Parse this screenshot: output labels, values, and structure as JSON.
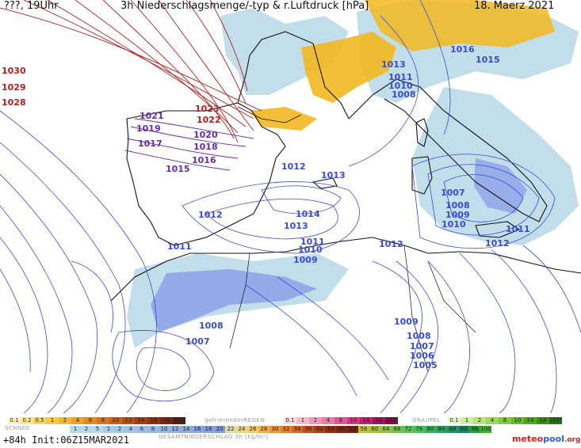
{
  "header": {
    "left": "???, 19Uhr",
    "title": "3h Niederschlagsmenge/-typ & r.Luftdruck [hPa]",
    "date": "18. Maerz 2021"
  },
  "isobar_labels": {
    "red": [
      "1030",
      "1029",
      "1028",
      "1023",
      "1022"
    ],
    "purple": [
      "1021",
      "1019",
      "1017",
      "1020",
      "1018",
      "1016",
      "1015"
    ],
    "blue": [
      "1016",
      "1015",
      "1013",
      "1011",
      "1010",
      "1008",
      "1012",
      "1013",
      "1014",
      "1013",
      "1012",
      "1011",
      "1011",
      "1010",
      "1009",
      "1012",
      "1007",
      "1008",
      "1009",
      "1010",
      "1012",
      "1011",
      "1008",
      "1007",
      "1009",
      "1008",
      "1007",
      "1006",
      "1005"
    ]
  },
  "legend": {
    "rain_label": "",
    "rain_values": [
      "0.1",
      "0.2",
      "0.5",
      "1",
      "2",
      "4",
      "6",
      "8",
      "10",
      "12",
      "14",
      "16",
      "18",
      "2025+"
    ],
    "freezing_label": "gefrierenderREGEN",
    "freezing_values": [
      "0.1",
      "1",
      "2",
      "4",
      "8",
      "10",
      "14",
      "16",
      "2025+"
    ],
    "graupel_label": "GRAUPEL",
    "graupel_values": [
      "0.1",
      "1",
      "2",
      "4",
      "8",
      "10",
      "14",
      "16",
      "2025+"
    ],
    "snow_label": "SCHNEE",
    "snow_values": [
      "1",
      "2",
      "5",
      "1",
      "2",
      "4",
      "6",
      "8",
      "10",
      "12",
      "14",
      "16",
      "18",
      "20",
      "22",
      "24",
      "26",
      "28",
      "30",
      "32",
      "34",
      "36",
      "40",
      "44",
      "48",
      "52",
      "56",
      "60",
      "64",
      "68",
      "72",
      "76",
      "80",
      "84",
      "88",
      "92",
      "96",
      "100"
    ],
    "total_label": "GESAMTNIEDERSCHLAG 3h [kg/m²]"
  },
  "footer": {
    "run": "+84h Init:06Z15MAR2021",
    "brand_prefix": "meteo",
    "brand_main": "pool",
    "brand_suffix": ".org"
  },
  "colors": {
    "rain": [
      "#fdf3c0",
      "#fce88a",
      "#fbd85a",
      "#f9c93a",
      "#f5b82a",
      "#f0a21c",
      "#e88a18",
      "#dc7414",
      "#cf5f12",
      "#c04c10",
      "#a83c0e",
      "#903010",
      "#7a2610",
      "#5c1c0c"
    ],
    "freezing": [
      "#fadadd",
      "#f7b8c8",
      "#f398b8",
      "#ee78a6",
      "#e75494",
      "#de3482",
      "#c81c70",
      "#a8105c",
      "#8c0648"
    ],
    "graupel": [
      "#e6f7c8",
      "#cdef9a",
      "#b4e670",
      "#9adc50",
      "#7ecf34",
      "#62c020",
      "#48ac14",
      "#329410",
      "#1e7c0c"
    ],
    "snow_light": "#b9d8e8",
    "snow_mid": "#8a9ce8",
    "rain_area": "#f2b820",
    "isobar_red": "#b02020",
    "isobar_purple": "#6a2aa8",
    "isobar_blue": "#3a4ad8",
    "brand_red": "#d42020",
    "brand_blue": "#2a5bd8"
  }
}
